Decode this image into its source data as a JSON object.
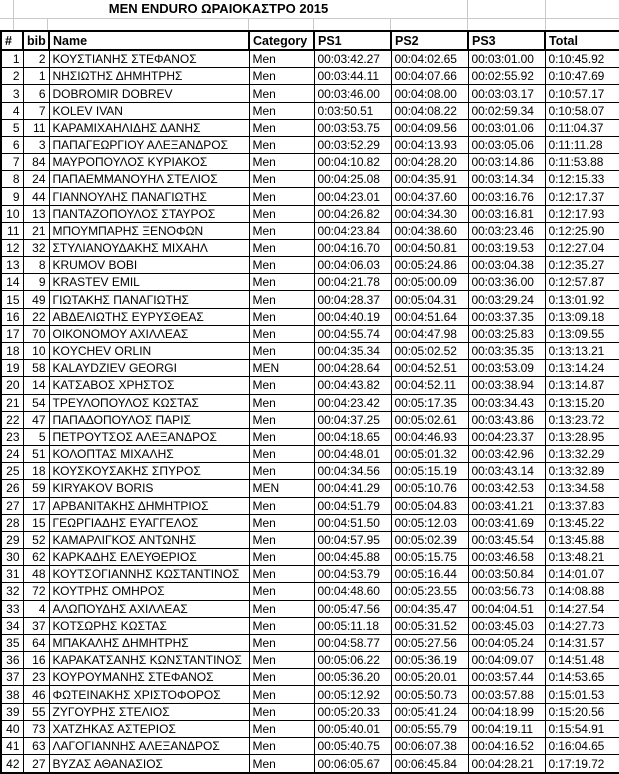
{
  "title": "MEN ENDURO ΩΡΑΙΟΚΑΣΤΡΟ 2015",
  "table": {
    "columns": [
      "#",
      "bib",
      "Name",
      "Category",
      "PS1",
      "PS2",
      "PS3",
      "Total"
    ],
    "rows": [
      [
        1,
        2,
        "ΚΟΥΣΤΙΑΝΗΣ ΣΤΕΦΑΝΟΣ",
        "Men",
        "00:03:42.27",
        "00:04:02.65",
        "00:03:01.00",
        "0:10:45.92"
      ],
      [
        2,
        1,
        "ΝΗΣΙΩΤΗΣ ΔΗΜΗΤΡΗΣ",
        "Men",
        "00:03:44.11",
        "00:04:07.66",
        "00:02:55.92",
        "0:10:47.69"
      ],
      [
        3,
        6,
        "DOBROMIR DOBREV",
        "Men",
        "00:03:46.00",
        "00:04:08.00",
        "00:03:03.17",
        "0:10:57.17"
      ],
      [
        4,
        7,
        "KOLEV IVAN",
        "Men",
        "0:03:50.51",
        "00:04:08.22",
        "00:02:59.34",
        "0:10:58.07"
      ],
      [
        5,
        11,
        "ΚΑΡΑΜΙΧΑΗΛΙΔΗΣ ΔΑΝΗΣ",
        "Men",
        "00:03:53.75",
        "00:04:09.56",
        "00:03:01.06",
        "0:11:04.37"
      ],
      [
        6,
        3,
        "ΠΑΠΑΓΕΩΡΓΙΟΥ ΑΛΕΞΑΝΔΡΟΣ",
        "Men",
        "00:03:52.29",
        "00:04:13.93",
        "00:03:05.06",
        "0:11:11.28"
      ],
      [
        7,
        84,
        "ΜΑΥΡΟΠΟΥΛΟΣ ΚΥΡΙΑΚΟΣ",
        "Men",
        "00:04:10.82",
        "00:04:28.20",
        "00:03:14.86",
        "0:11:53.88"
      ],
      [
        8,
        24,
        "ΠΑΠΑΕΜΜΑΝΟΥΗΛ ΣΤΕΛΙΟΣ",
        "Men",
        "00:04:25.08",
        "00:04:35.91",
        "00:03:14.34",
        "0:12:15.33"
      ],
      [
        9,
        44,
        "ΓΙΑΝΝΟΥΛΗΣ ΠΑΝΑΓΙΩΤΗΣ",
        "Men",
        "00:04:23.01",
        "00:04:37.60",
        "00:03:16.76",
        "0:12:17.37"
      ],
      [
        10,
        13,
        "ΠΑΝΤΑΖΟΠΟΥΛΟΣ  ΣΤΑΥΡΟΣ",
        "Men",
        "00:04:26.82",
        "00:04:34.30",
        "00:03:16.81",
        "0:12:17.93"
      ],
      [
        11,
        21,
        "ΜΠΟΥΜΠΑΡΗΣ ΞΕΝΟΦΩΝ",
        "Men",
        "00:04:23.84",
        "00:04:38.60",
        "00:03:23.46",
        "0:12:25.90"
      ],
      [
        12,
        32,
        "ΣΤΥΛΙΑΝΟΥΔΑΚΗΣ ΜΙΧΑΗΛ",
        "Men",
        "00:04:16.70",
        "00:04:50.81",
        "00:03:19.53",
        "0:12:27.04"
      ],
      [
        13,
        8,
        "KRUMOV BOBI",
        "Men",
        "00:04:06.03",
        "00:05:24.86",
        "00:03:04.38",
        "0:12:35.27"
      ],
      [
        14,
        9,
        "KRASTEV EMIL",
        "Men",
        "00:04:21.78",
        "00:05:00.09",
        "00:03:36.00",
        "0:12:57.87"
      ],
      [
        15,
        49,
        "ΓΙΩΤΑΚΗΣ ΠΑΝΑΓΙΩΤΗΣ",
        "Men",
        "00:04:28.37",
        "00:05:04.31",
        "00:03:29.24",
        "0:13:01.92"
      ],
      [
        16,
        22,
        "ΑΒΔΕΛΙΩΤΗΣ ΕΥΡΥΣΘΕΑΣ",
        "Men",
        "00:04:40.19",
        "00:04:51.64",
        "00:03:37.35",
        "0:13:09.18"
      ],
      [
        17,
        70,
        "ΟΙΚΟΝΟΜΟΥ ΑΧΙΛΛΕΑΣ",
        "Men",
        "00:04:55.74",
        "00:04:47.98",
        "00:03:25.83",
        "0:13:09.55"
      ],
      [
        18,
        10,
        "KOYCHEV ORLIN",
        "Men",
        "00:04:35.34",
        "00:05:02.52",
        "00:03:35.35",
        "0:13:13.21"
      ],
      [
        19,
        58,
        "KALAYDZIEV  GEORGI",
        "MEN",
        "00:04:28.64",
        "00:04:52.51",
        "00:03:53.09",
        "0:13:14.24"
      ],
      [
        20,
        14,
        "ΚΑΤΣΑΒΟΣ ΧΡΗΣΤΟΣ",
        "Men",
        "00:04:43.82",
        "00:04:52.11",
        "00:03:38.94",
        "0:13:14.87"
      ],
      [
        21,
        54,
        "ΤΡΕΥΛΟΠΟΥΛΟΣ ΚΩΣΤΑΣ",
        "Men",
        "00:04:23.42",
        "00:05:17.35",
        "00:03:34.43",
        "0:13:15.20"
      ],
      [
        22,
        47,
        "ΠΑΠΑΔΟΠΟΥΛΟΣ ΠΑΡΙΣ",
        "Men",
        "00:04:37.25",
        "00:05:02.61",
        "00:03:43.86",
        "0:13:23.72"
      ],
      [
        23,
        5,
        "ΠΕΤΡΟΥΤΣΟΣ ΑΛΕΞΑΝΔΡΟΣ",
        "Men",
        "00:04:18.65",
        "00:04:46.93",
        "00:04:23.37",
        "0:13:28.95"
      ],
      [
        24,
        51,
        "ΚΟΛΟΠΤΑΣ ΜΙΧΑΛΗΣ",
        "Men",
        "00:04:48.01",
        "00:05:01.32",
        "00:03:42.96",
        "0:13:32.29"
      ],
      [
        25,
        18,
        "ΚΟΥΣΚΟΥΣΑΚΗΣ ΣΠΥΡΟΣ",
        "Men",
        "00:04:34.56",
        "00:05:15.19",
        "00:03:43.14",
        "0:13:32.89"
      ],
      [
        26,
        59,
        "KIRYAKOV BORIS",
        "MEN",
        "00:04:41.29",
        "00:05:10.76",
        "00:03:42.53",
        "0:13:34.58"
      ],
      [
        27,
        17,
        "ΑΡΒΑΝΙΤΑΚΗΣ ΔΗΜΗΤΡΙΟΣ",
        "Men",
        "00:04:51.79",
        "00:05:04.83",
        "00:03:41.21",
        "0:13:37.83"
      ],
      [
        28,
        15,
        "ΓΕΩΡΓΙΑΔΗΣ ΕΥΑΓΓΕΛΟΣ",
        "Men",
        "00:04:51.50",
        "00:05:12.03",
        "00:03:41.69",
        "0:13:45.22"
      ],
      [
        29,
        52,
        "ΚΑΜΑΡΛΙΓΚΟΣ ΑΝΤΩΝΗΣ",
        "Men",
        "00:04:57.95",
        "00:05:02.39",
        "00:03:45.54",
        "0:13:45.88"
      ],
      [
        30,
        62,
        "ΚΑΡΚΑΔΗΣ ΕΛΕΥΘΕΡΙΟΣ",
        "Men",
        "00:04:45.88",
        "00:05:15.75",
        "00:03:46.58",
        "0:13:48.21"
      ],
      [
        31,
        48,
        "ΚΟΥΤΣΟΓΙΑΝΝΗΣ ΚΩΣΤΑΝΤΙΝΟΣ",
        "Men",
        "00:04:53.79",
        "00:05:16.44",
        "00:03:50.84",
        "0:14:01.07"
      ],
      [
        32,
        72,
        "ΚΟΥΤΡΗΣ ΟΜΗΡΟΣ",
        "Men",
        "00:04:48.60",
        "00:05:23.55",
        "00:03:56.73",
        "0:14:08.88"
      ],
      [
        33,
        4,
        "ΑΛΩΠΟΥΔΗΣ ΑΧΙΛΛΕΑΣ",
        "Men",
        "00:05:47.56",
        "00:04:35.47",
        "00:04:04.51",
        "0:14:27.54"
      ],
      [
        34,
        37,
        "ΚΟΤΣΩΡΗΣ ΚΩΣΤΑΣ",
        "Men",
        "00:05:11.18",
        "00:05:31.52",
        "00:03:45.03",
        "0:14:27.73"
      ],
      [
        35,
        64,
        "ΜΠΑΚΑΛΗΣ ΔΗΜΗΤΡΗΣ",
        "Men",
        "00:04:58.77",
        "00:05:27.56",
        "00:04:05.24",
        "0:14:31.57"
      ],
      [
        36,
        16,
        "ΚΑΡΑΚΑΤΣΑΝΗΣ  ΚΩΝΣΤΑΝΤΙΝΟΣ",
        "Men",
        "00:05:06.22",
        "00:05:36.19",
        "00:04:09.07",
        "0:14:51.48"
      ],
      [
        37,
        23,
        "ΚΟΥΡΟΥΜΑΝΗΣ ΣΤΕΦΑΝΟΣ",
        "Men",
        "00:05:36.20",
        "00:05:20.01",
        "00:03:57.44",
        "0:14:53.65"
      ],
      [
        38,
        46,
        "ΦΩΤΕΙΝΑΚΗΣ ΧΡΙΣΤΟΦΟΡΟΣ",
        "Men",
        "00:05:12.92",
        "00:05:50.73",
        "00:03:57.88",
        "0:15:01.53"
      ],
      [
        39,
        55,
        "ΖΥΓΟΥΡΗΣ ΣΤΕΛΙΟΣ",
        "Men",
        "00:05:20.33",
        "00:05:41.24",
        "00:04:18.99",
        "0:15:20.56"
      ],
      [
        40,
        73,
        "ΧΑΤΖΗΚΑΣ ΑΣΤΕΡΙΟΣ",
        "Men",
        "00:05:40.01",
        "00:05:55.79",
        "00:04:19.11",
        "0:15:54.91"
      ],
      [
        41,
        63,
        "ΛΑΓΟΓΙΑΝΝΗΣ ΑΛΕΞΑΝΔΡΟΣ",
        "Men",
        "00:05:40.75",
        "00:06:07.38",
        "00:04:16.52",
        "0:16:04.65"
      ],
      [
        42,
        27,
        "ΒΥΖΑΣ ΑΘΑΝΑΣΙΟΣ",
        "Men",
        "00:06:05.67",
        "00:06:45.84",
        "00:04:28.21",
        "0:17:19.72"
      ]
    ]
  },
  "colors": {
    "table_border": "#000000",
    "gridline": "#c9c9c9",
    "background": "#ffffff",
    "text": "#000000"
  }
}
